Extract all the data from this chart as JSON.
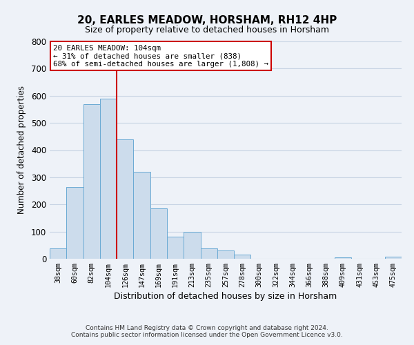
{
  "title": "20, EARLES MEADOW, HORSHAM, RH12 4HP",
  "subtitle": "Size of property relative to detached houses in Horsham",
  "xlabel": "Distribution of detached houses by size in Horsham",
  "ylabel": "Number of detached properties",
  "bar_labels": [
    "38sqm",
    "60sqm",
    "82sqm",
    "104sqm",
    "126sqm",
    "147sqm",
    "169sqm",
    "191sqm",
    "213sqm",
    "235sqm",
    "257sqm",
    "278sqm",
    "300sqm",
    "322sqm",
    "344sqm",
    "366sqm",
    "388sqm",
    "409sqm",
    "431sqm",
    "453sqm",
    "475sqm"
  ],
  "bar_heights": [
    38,
    265,
    570,
    590,
    440,
    320,
    185,
    82,
    100,
    38,
    30,
    15,
    0,
    0,
    0,
    0,
    0,
    5,
    0,
    0,
    8
  ],
  "bar_color": "#ccdcec",
  "bar_edge_color": "#6aaad4",
  "vline_color": "#cc0000",
  "annotation_text": "20 EARLES MEADOW: 104sqm\n← 31% of detached houses are smaller (838)\n68% of semi-detached houses are larger (1,808) →",
  "annotation_box_color": "#ffffff",
  "annotation_box_edge_color": "#cc0000",
  "ylim": [
    0,
    800
  ],
  "yticks": [
    0,
    100,
    200,
    300,
    400,
    500,
    600,
    700,
    800
  ],
  "grid_color": "#c8d4e4",
  "background_color": "#eef2f8",
  "footer_line1": "Contains HM Land Registry data © Crown copyright and database right 2024.",
  "footer_line2": "Contains public sector information licensed under the Open Government Licence v3.0."
}
